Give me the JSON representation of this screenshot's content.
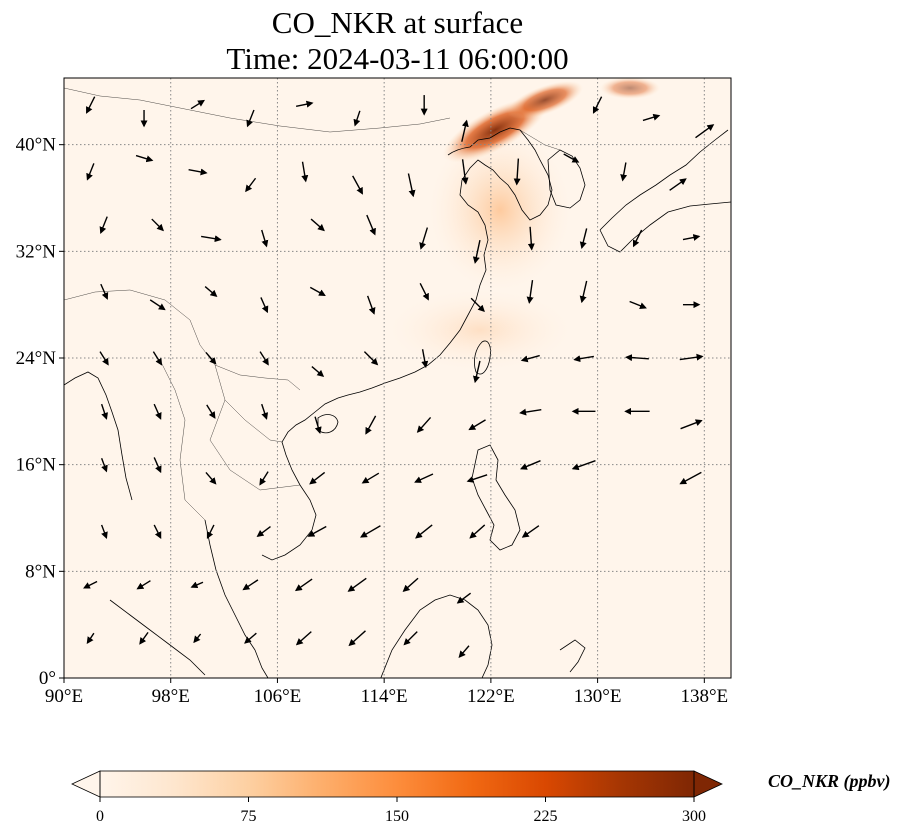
{
  "title_line1": "CO_NKR at surface",
  "title_line2": "Time: 2024-03-11 06:00:00",
  "map": {
    "lon_range": [
      90,
      140
    ],
    "lat_range": [
      0,
      45
    ],
    "lon_ticks": [
      {
        "value": 90,
        "label": "90°E"
      },
      {
        "value": 98,
        "label": "98°E"
      },
      {
        "value": 106,
        "label": "106°E"
      },
      {
        "value": 114,
        "label": "114°E"
      },
      {
        "value": 122,
        "label": "122°E"
      },
      {
        "value": 130,
        "label": "130°E"
      },
      {
        "value": 138,
        "label": "138°E"
      }
    ],
    "lat_ticks": [
      {
        "value": 0,
        "label": "0°"
      },
      {
        "value": 8,
        "label": "8°N"
      },
      {
        "value": 16,
        "label": "16°N"
      },
      {
        "value": 24,
        "label": "24°N"
      },
      {
        "value": 32,
        "label": "32°N"
      },
      {
        "value": 40,
        "label": "40°N"
      }
    ],
    "gridlines": true,
    "background_color": "#fff5eb",
    "coastline_color": "#000000",
    "plume_region": "Northeast China / Korea",
    "wind_vectors": [
      {
        "lon": 92,
        "lat": 43,
        "u": -0.5,
        "v": -1
      },
      {
        "lon": 96,
        "lat": 42,
        "u": 0,
        "v": -1
      },
      {
        "lon": 100,
        "lat": 43,
        "u": 0.8,
        "v": 0.5
      },
      {
        "lon": 104,
        "lat": 42,
        "u": -0.4,
        "v": -1
      },
      {
        "lon": 108,
        "lat": 43,
        "u": 1,
        "v": 0.2
      },
      {
        "lon": 112,
        "lat": 42,
        "u": -0.3,
        "v": -0.9
      },
      {
        "lon": 117,
        "lat": 43,
        "u": 0,
        "v": -1.2
      },
      {
        "lon": 120,
        "lat": 41,
        "u": 0.3,
        "v": 1.3
      },
      {
        "lon": 130,
        "lat": 43,
        "u": -0.5,
        "v": -1
      },
      {
        "lon": 134,
        "lat": 42,
        "u": 1,
        "v": 0.3
      },
      {
        "lon": 138,
        "lat": 41,
        "u": 1.1,
        "v": 0.8
      },
      {
        "lon": 92,
        "lat": 38,
        "u": -0.4,
        "v": -1
      },
      {
        "lon": 96,
        "lat": 39,
        "u": 1,
        "v": -0.3
      },
      {
        "lon": 100,
        "lat": 38,
        "u": 1.1,
        "v": -0.2
      },
      {
        "lon": 104,
        "lat": 37,
        "u": -0.6,
        "v": -0.8
      },
      {
        "lon": 108,
        "lat": 38,
        "u": 0.2,
        "v": -1.2
      },
      {
        "lon": 112,
        "lat": 37,
        "u": 0.6,
        "v": -1.1
      },
      {
        "lon": 116,
        "lat": 37,
        "u": 0.3,
        "v": -1.4
      },
      {
        "lon": 120,
        "lat": 38,
        "u": 0.2,
        "v": -1.5
      },
      {
        "lon": 124,
        "lat": 38,
        "u": -0.1,
        "v": -1.6
      },
      {
        "lon": 128,
        "lat": 39,
        "u": 0.9,
        "v": -0.5
      },
      {
        "lon": 132,
        "lat": 38,
        "u": -0.2,
        "v": -1.1
      },
      {
        "lon": 136,
        "lat": 37,
        "u": 1,
        "v": 0.7
      },
      {
        "lon": 93,
        "lat": 34,
        "u": -0.4,
        "v": -1
      },
      {
        "lon": 97,
        "lat": 34,
        "u": 0.7,
        "v": -0.7
      },
      {
        "lon": 101,
        "lat": 33,
        "u": 1.2,
        "v": -0.2
      },
      {
        "lon": 105,
        "lat": 33,
        "u": 0.3,
        "v": -1
      },
      {
        "lon": 109,
        "lat": 34,
        "u": 0.8,
        "v": -0.7
      },
      {
        "lon": 113,
        "lat": 34,
        "u": 0.5,
        "v": -1.2
      },
      {
        "lon": 117,
        "lat": 33,
        "u": -0.4,
        "v": -1.3
      },
      {
        "lon": 121,
        "lat": 32,
        "u": -0.3,
        "v": -1.4
      },
      {
        "lon": 125,
        "lat": 33,
        "u": 0.1,
        "v": -1.4
      },
      {
        "lon": 129,
        "lat": 33,
        "u": -0.3,
        "v": -1.2
      },
      {
        "lon": 133,
        "lat": 33,
        "u": -0.5,
        "v": -1
      },
      {
        "lon": 137,
        "lat": 33,
        "u": 1,
        "v": 0.2
      },
      {
        "lon": 93,
        "lat": 29,
        "u": 0.4,
        "v": -0.9
      },
      {
        "lon": 97,
        "lat": 28,
        "u": 0.9,
        "v": -0.6
      },
      {
        "lon": 101,
        "lat": 29,
        "u": 0.7,
        "v": -0.6
      },
      {
        "lon": 105,
        "lat": 28,
        "u": 0.4,
        "v": -0.9
      },
      {
        "lon": 109,
        "lat": 29,
        "u": 0.9,
        "v": -0.5
      },
      {
        "lon": 113,
        "lat": 28,
        "u": 0.4,
        "v": -1.1
      },
      {
        "lon": 117,
        "lat": 29,
        "u": 0.5,
        "v": -1
      },
      {
        "lon": 121,
        "lat": 28,
        "u": 0.8,
        "v": -0.8
      },
      {
        "lon": 125,
        "lat": 29,
        "u": -0.2,
        "v": -1.4
      },
      {
        "lon": 129,
        "lat": 29,
        "u": -0.3,
        "v": -1.3
      },
      {
        "lon": 133,
        "lat": 28,
        "u": 1,
        "v": -0.4
      },
      {
        "lon": 137,
        "lat": 28,
        "u": 1,
        "v": 0
      },
      {
        "lon": 93,
        "lat": 24,
        "u": 0.5,
        "v": -0.8
      },
      {
        "lon": 97,
        "lat": 24,
        "u": 0.5,
        "v": -0.8
      },
      {
        "lon": 101,
        "lat": 24,
        "u": 0.6,
        "v": -0.7
      },
      {
        "lon": 105,
        "lat": 24,
        "u": 0.5,
        "v": -0.8
      },
      {
        "lon": 109,
        "lat": 23,
        "u": 0.7,
        "v": -0.6
      },
      {
        "lon": 113,
        "lat": 24,
        "u": 0.8,
        "v": -0.8
      },
      {
        "lon": 117,
        "lat": 24,
        "u": 0.2,
        "v": -1.1
      },
      {
        "lon": 121,
        "lat": 23,
        "u": -0.3,
        "v": -1.3
      },
      {
        "lon": 125,
        "lat": 24,
        "u": -1.1,
        "v": -0.3
      },
      {
        "lon": 129,
        "lat": 24,
        "u": -1.2,
        "v": -0.2
      },
      {
        "lon": 133,
        "lat": 24,
        "u": -1.4,
        "v": 0.1
      },
      {
        "lon": 137,
        "lat": 24,
        "u": 1.4,
        "v": 0.2
      },
      {
        "lon": 93,
        "lat": 20,
        "u": 0.3,
        "v": -0.9
      },
      {
        "lon": 97,
        "lat": 20,
        "u": 0.4,
        "v": -0.9
      },
      {
        "lon": 101,
        "lat": 20,
        "u": 0.5,
        "v": -0.8
      },
      {
        "lon": 105,
        "lat": 20,
        "u": 0.3,
        "v": -0.9
      },
      {
        "lon": 109,
        "lat": 19,
        "u": 0.3,
        "v": -1
      },
      {
        "lon": 113,
        "lat": 19,
        "u": -0.6,
        "v": -1.1
      },
      {
        "lon": 117,
        "lat": 19,
        "u": -0.8,
        "v": -0.9
      },
      {
        "lon": 121,
        "lat": 19,
        "u": -1,
        "v": -0.6
      },
      {
        "lon": 125,
        "lat": 20,
        "u": -1.3,
        "v": -0.2
      },
      {
        "lon": 129,
        "lat": 20,
        "u": -1.4,
        "v": 0
      },
      {
        "lon": 133,
        "lat": 20,
        "u": -1.5,
        "v": 0
      },
      {
        "lon": 137,
        "lat": 19,
        "u": 1.3,
        "v": 0.5
      },
      {
        "lon": 93,
        "lat": 16,
        "u": 0.3,
        "v": -0.8
      },
      {
        "lon": 97,
        "lat": 16,
        "u": 0.4,
        "v": -0.9
      },
      {
        "lon": 101,
        "lat": 15,
        "u": 0.6,
        "v": -0.7
      },
      {
        "lon": 105,
        "lat": 15,
        "u": -0.5,
        "v": -0.8
      },
      {
        "lon": 109,
        "lat": 15,
        "u": -0.9,
        "v": -0.7
      },
      {
        "lon": 113,
        "lat": 15,
        "u": -1,
        "v": -0.6
      },
      {
        "lon": 117,
        "lat": 15,
        "u": -1.1,
        "v": -0.5
      },
      {
        "lon": 121,
        "lat": 15,
        "u": -1.2,
        "v": -0.4
      },
      {
        "lon": 125,
        "lat": 16,
        "u": -1.2,
        "v": -0.5
      },
      {
        "lon": 129,
        "lat": 16,
        "u": -1.4,
        "v": -0.5
      },
      {
        "lon": 137,
        "lat": 15,
        "u": -1.3,
        "v": -0.7
      },
      {
        "lon": 93,
        "lat": 11,
        "u": 0.3,
        "v": -0.8
      },
      {
        "lon": 97,
        "lat": 11,
        "u": 0.4,
        "v": -0.8
      },
      {
        "lon": 101,
        "lat": 11,
        "u": -0.4,
        "v": -0.8
      },
      {
        "lon": 105,
        "lat": 11,
        "u": -0.8,
        "v": -0.6
      },
      {
        "lon": 109,
        "lat": 11,
        "u": -1.1,
        "v": -0.6
      },
      {
        "lon": 113,
        "lat": 11,
        "u": -1.2,
        "v": -0.7
      },
      {
        "lon": 117,
        "lat": 11,
        "u": -1,
        "v": -0.8
      },
      {
        "lon": 121,
        "lat": 11,
        "u": -0.9,
        "v": -0.8
      },
      {
        "lon": 125,
        "lat": 11,
        "u": -1,
        "v": -0.7
      },
      {
        "lon": 92,
        "lat": 7,
        "u": -0.8,
        "v": -0.4
      },
      {
        "lon": 96,
        "lat": 7,
        "u": -0.8,
        "v": -0.5
      },
      {
        "lon": 100,
        "lat": 7,
        "u": -0.7,
        "v": -0.3
      },
      {
        "lon": 104,
        "lat": 7,
        "u": -0.9,
        "v": -0.6
      },
      {
        "lon": 108,
        "lat": 7,
        "u": -1,
        "v": -0.7
      },
      {
        "lon": 112,
        "lat": 7,
        "u": -1.1,
        "v": -0.8
      },
      {
        "lon": 116,
        "lat": 7,
        "u": -0.9,
        "v": -0.8
      },
      {
        "lon": 120,
        "lat": 6,
        "u": -0.8,
        "v": -0.6
      },
      {
        "lon": 92,
        "lat": 3,
        "u": -0.4,
        "v": -0.6
      },
      {
        "lon": 96,
        "lat": 3,
        "u": -0.5,
        "v": -0.7
      },
      {
        "lon": 100,
        "lat": 3,
        "u": -0.4,
        "v": -0.5
      },
      {
        "lon": 104,
        "lat": 3,
        "u": -0.7,
        "v": -0.6
      },
      {
        "lon": 108,
        "lat": 3,
        "u": -0.9,
        "v": -0.8
      },
      {
        "lon": 112,
        "lat": 3,
        "u": -1,
        "v": -0.9
      },
      {
        "lon": 116,
        "lat": 3,
        "u": -0.8,
        "v": -0.8
      },
      {
        "lon": 120,
        "lat": 2,
        "u": -0.6,
        "v": -0.7
      }
    ]
  },
  "colorbar": {
    "label": "CO_NKR (ppbv)",
    "range": [
      0,
      300
    ],
    "ticks": [
      {
        "value": 0,
        "label": "0"
      },
      {
        "value": 75,
        "label": "75"
      },
      {
        "value": 150,
        "label": "150"
      },
      {
        "value": 225,
        "label": "225"
      },
      {
        "value": 300,
        "label": "300"
      }
    ],
    "colormap": [
      "#fff5eb",
      "#fee6ce",
      "#fdd0a2",
      "#fdae6b",
      "#fd8d3c",
      "#f16913",
      "#d94801",
      "#a63603",
      "#7f2704"
    ],
    "extend": "both"
  }
}
